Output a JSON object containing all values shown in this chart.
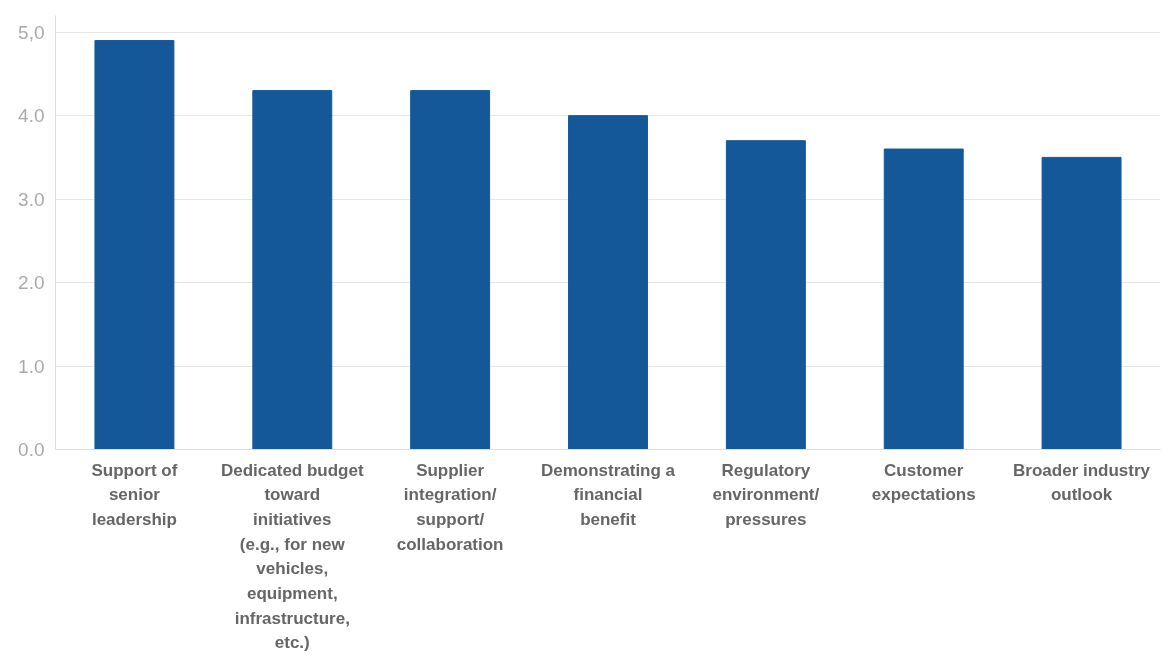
{
  "chart_data": {
    "type": "bar",
    "categories": [
      "Support of senior leadership",
      "Dedicated budget toward initiatives (e.g., for new vehicles, equipment, infrastructure, etc.)",
      "Supplier integration/ support/ collaboration",
      "Demonstrating a financial benefit",
      "Regulatory environment/ pressures",
      "Customer expectations",
      "Broader industry outlook"
    ],
    "values": [
      4.9,
      4.3,
      4.3,
      4.0,
      3.7,
      3.6,
      3.5
    ],
    "color": "#14589a",
    "ylim": [
      0,
      5.2
    ],
    "yticks": [
      {
        "value": 0,
        "label": "0.0"
      },
      {
        "value": 1,
        "label": "1.0"
      },
      {
        "value": 2,
        "label": "2.0"
      },
      {
        "value": 3,
        "label": "3.0"
      },
      {
        "value": 4,
        "label": "4.0"
      },
      {
        "value": 5,
        "label": "5,0"
      }
    ],
    "grid": "y"
  }
}
